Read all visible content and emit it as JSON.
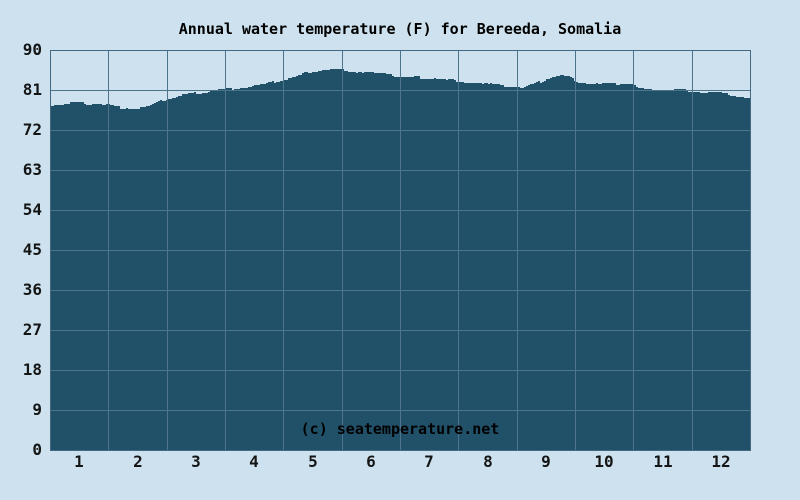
{
  "chart_data": {
    "type": "area",
    "title": "Annual water temperature (F) for Bereeda, Somalia",
    "xlabel": "",
    "ylabel": "",
    "categories": [
      "1",
      "2",
      "3",
      "4",
      "5",
      "6",
      "7",
      "8",
      "9",
      "10",
      "11",
      "12"
    ],
    "values": [
      78.1,
      77.1,
      80.3,
      81.9,
      85.3,
      84.9,
      83.7,
      82.3,
      83.5,
      82.2,
      81.0,
      80.1
    ],
    "series_name": "Water temperature (F)",
    "ylim": [
      0,
      90
    ],
    "yticks": [
      90,
      81,
      72,
      63,
      54,
      45,
      36,
      27,
      18,
      9,
      0
    ],
    "grid": true,
    "legend": "none",
    "watermark": "(c) seatemperature.net",
    "curve_samples": [
      [
        0,
        77.6
      ],
      [
        0.25,
        77.9
      ],
      [
        0.5,
        78.1
      ],
      [
        0.75,
        77.9
      ],
      [
        1,
        77.6
      ],
      [
        1.2,
        77.1
      ],
      [
        1.4,
        76.9
      ],
      [
        1.6,
        77.0
      ],
      [
        1.8,
        77.9
      ],
      [
        2,
        79.0
      ],
      [
        2.25,
        79.7
      ],
      [
        2.5,
        80.3
      ],
      [
        2.75,
        80.8
      ],
      [
        3,
        81.2
      ],
      [
        3.25,
        81.5
      ],
      [
        3.5,
        81.9
      ],
      [
        3.75,
        82.5
      ],
      [
        4,
        83.3
      ],
      [
        4.25,
        84.3
      ],
      [
        4.5,
        85.3
      ],
      [
        4.7,
        85.6
      ],
      [
        5,
        85.6
      ],
      [
        5.3,
        85.1
      ],
      [
        5.5,
        84.9
      ],
      [
        5.75,
        84.4
      ],
      [
        6,
        84.0
      ],
      [
        6.3,
        83.8
      ],
      [
        6.5,
        83.7
      ],
      [
        6.75,
        83.4
      ],
      [
        7,
        83.1
      ],
      [
        7.25,
        82.7
      ],
      [
        7.5,
        82.3
      ],
      [
        7.75,
        81.9
      ],
      [
        8,
        81.6
      ],
      [
        8.1,
        81.5
      ],
      [
        8.3,
        82.3
      ],
      [
        8.5,
        83.4
      ],
      [
        8.7,
        84.2
      ],
      [
        8.85,
        84.1
      ],
      [
        9,
        83.1
      ],
      [
        9.2,
        82.5
      ],
      [
        9.5,
        82.2
      ],
      [
        9.8,
        82.4
      ],
      [
        10,
        82.4
      ],
      [
        10.08,
        81.1
      ],
      [
        10.3,
        81.0
      ],
      [
        10.6,
        80.9
      ],
      [
        10.8,
        81.1
      ],
      [
        11,
        80.8
      ],
      [
        11.2,
        80.4
      ],
      [
        11.45,
        80.3
      ],
      [
        11.7,
        79.8
      ],
      [
        12,
        79.0
      ]
    ],
    "colors": {
      "background": "#cde2ee",
      "fill": "#215069",
      "grid": "#4e748c",
      "border": "#446882",
      "text": "#151515",
      "watermark": "#e9f2f7"
    }
  }
}
